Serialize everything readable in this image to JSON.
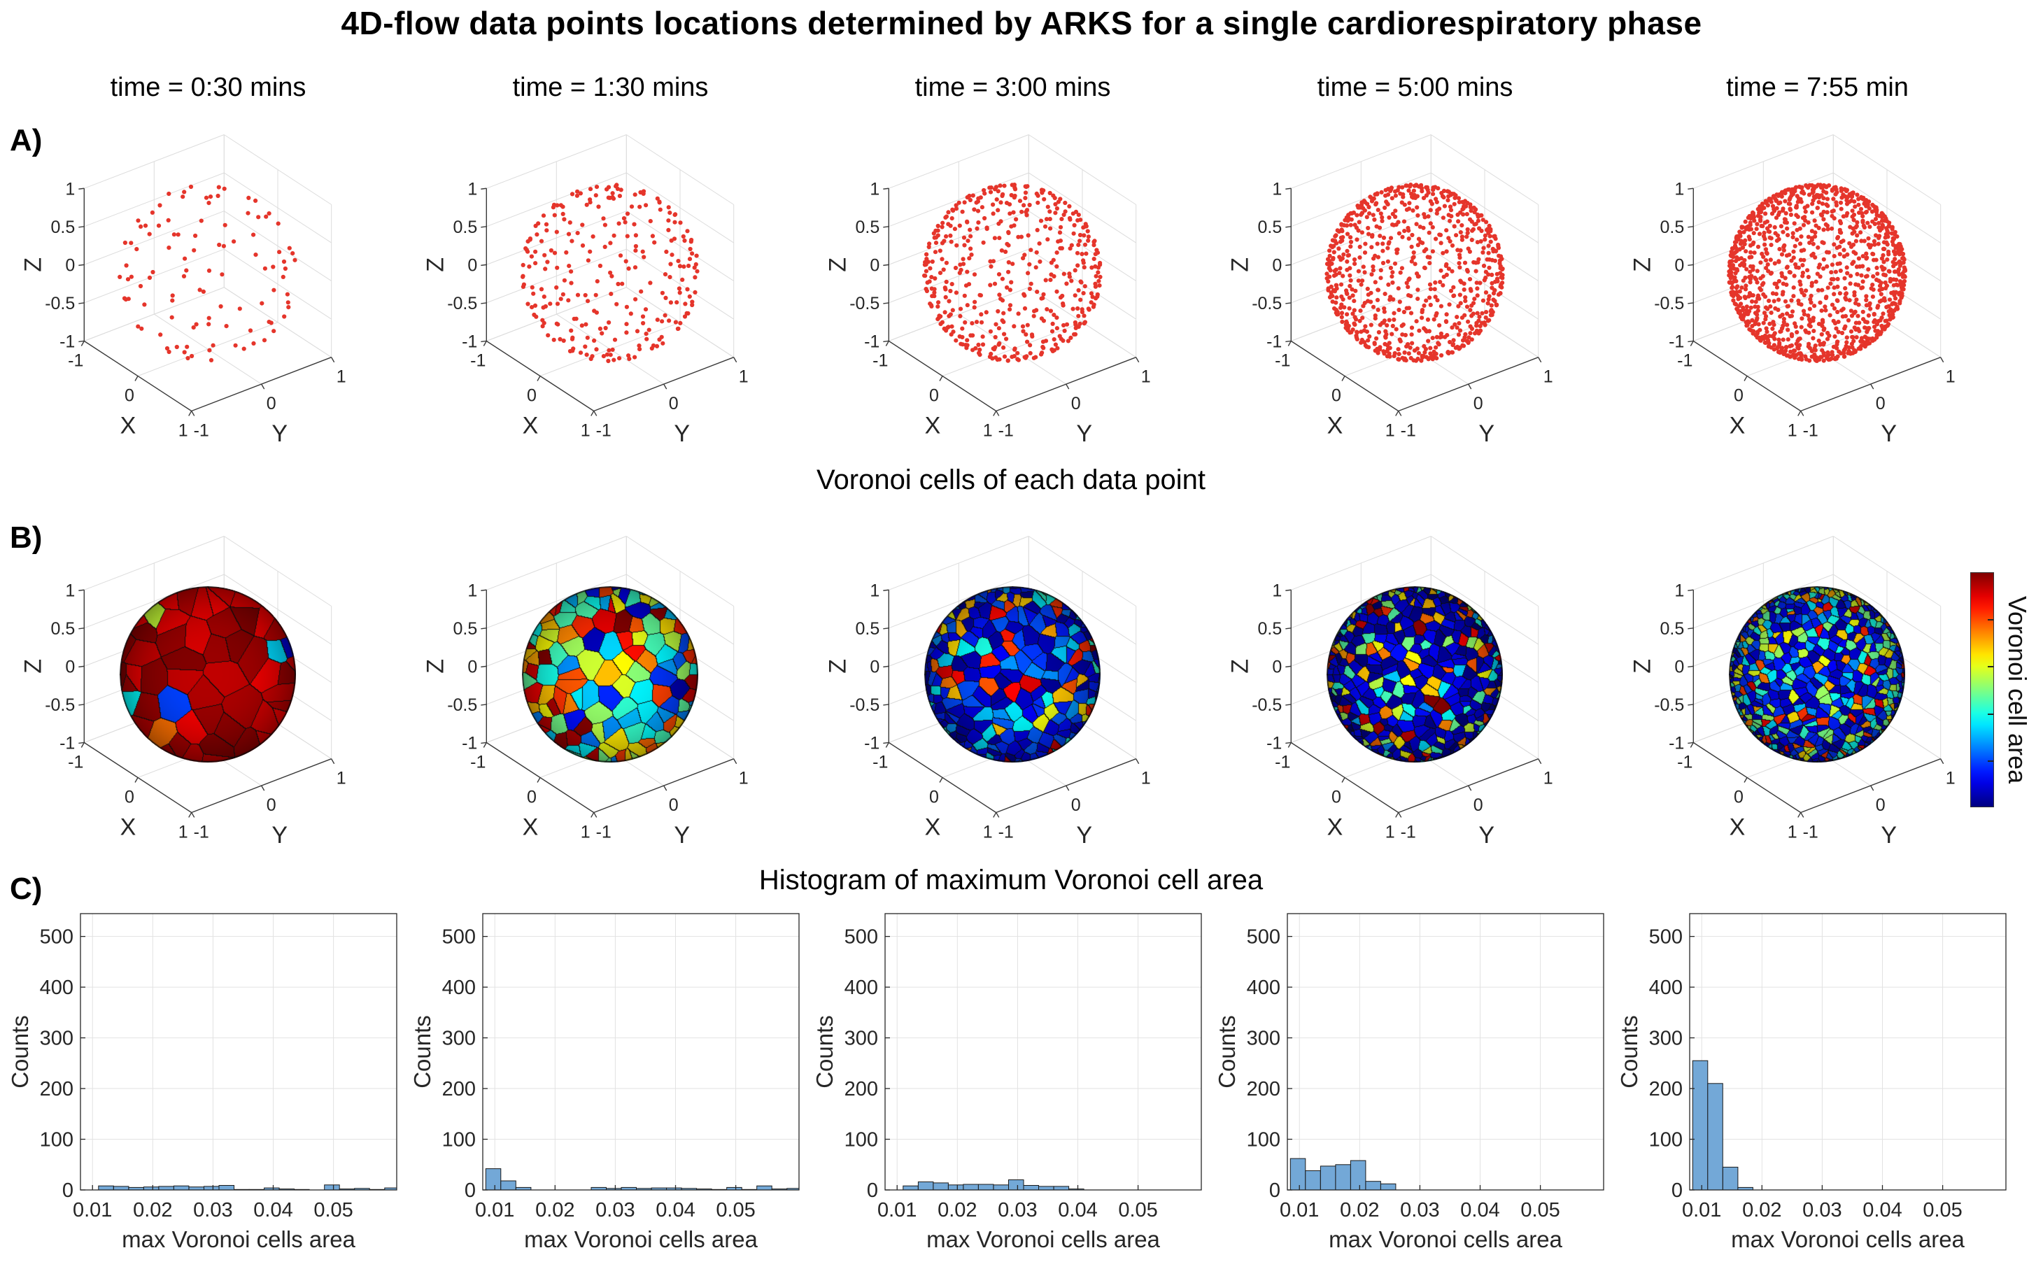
{
  "figure": {
    "title": "4D-flow data points locations determined by ARKS for a single cardiorespiratory phase",
    "row_labels": {
      "a": "A)",
      "b": "B)",
      "c": "C)"
    },
    "row_b_subtitle": "Voronoi cells of each data point",
    "row_c_subtitle": "Histogram of maximum Voronoi cell area",
    "time_labels": [
      "time = 0:30 mins",
      "time = 1:30 mins",
      "time = 3:00 mins",
      "time = 5:00 mins",
      "time = 7:55 min"
    ]
  },
  "axes3d": {
    "xlabel": "X",
    "ylabel": "Y",
    "zlabel": "Z",
    "xticks": [
      -1,
      0,
      1
    ],
    "yticks": [
      -1,
      0,
      1
    ],
    "zticks": [
      1,
      0.5,
      0,
      -0.5,
      -1
    ],
    "xlim": [
      -1,
      1
    ],
    "ylim": [
      -1,
      1
    ],
    "zlim": [
      -1,
      1
    ],
    "grid": true
  },
  "colorbar": {
    "label": "Voronoi cell area",
    "colormap": "jet"
  },
  "chart_data": {
    "row_a": {
      "type": "scatter",
      "description": "3D scatter of 4D-flow sampling locations on the unit sphere at increasing scan times",
      "marker_color": "#e5352b",
      "columns": [
        {
          "time": "0:30",
          "n_points": 104
        },
        {
          "time": "1:30",
          "n_points": 260
        },
        {
          "time": "3:00",
          "n_points": 470
        },
        {
          "time": "5:00",
          "n_points": 780
        },
        {
          "time": "7:55",
          "n_points": 1160
        }
      ]
    },
    "row_b": {
      "type": "heatmap",
      "description": "Spherical Voronoi tessellation of the data points, cells colored by Voronoi cell area (jet colormap, dark red = large, dark blue = small)",
      "colormap": "jet",
      "columns": [
        {
          "time": "0:30",
          "n_cells": 104,
          "dominant": "large dark-red cells with a few cyan/yellow/blue cells",
          "area_value_mix": [
            [
              0.88,
              1.0,
              0.9
            ],
            [
              0.3,
              0.8,
              0.06
            ],
            [
              0.0,
              0.25,
              0.04
            ]
          ]
        },
        {
          "time": "1:30",
          "n_cells": 260,
          "dominant": "mixed cyan/green/yellow cells with scattered dark-red and blue",
          "area_value_mix": [
            [
              0.25,
              0.75,
              0.62
            ],
            [
              0.75,
              1.0,
              0.2
            ],
            [
              0.05,
              0.25,
              0.18
            ]
          ]
        },
        {
          "time": "3:00",
          "n_cells": 470,
          "dominant": "mostly blue cells with scattered dark-red/orange patches",
          "area_value_mix": [
            [
              0.02,
              0.22,
              0.66
            ],
            [
              0.22,
              0.45,
              0.14
            ],
            [
              0.6,
              1.0,
              0.2
            ]
          ]
        },
        {
          "time": "5:00",
          "n_cells": 780,
          "dominant": "dark-blue cells with many scattered red/orange/yellow cells",
          "area_value_mix": [
            [
              0.0,
              0.14,
              0.62
            ],
            [
              0.55,
              1.0,
              0.24
            ],
            [
              0.25,
              0.55,
              0.14
            ]
          ]
        },
        {
          "time": "7:55",
          "n_cells": 1160,
          "dominant": "dark-blue background with many small green/cyan/yellow cells",
          "area_value_mix": [
            [
              0.03,
              0.2,
              0.5
            ],
            [
              0.25,
              0.62,
              0.38
            ],
            [
              0.62,
              0.95,
              0.12
            ]
          ]
        }
      ]
    },
    "row_c": {
      "type": "bar",
      "xlabel": "max Voronoi cells area",
      "ylabel": "Counts",
      "bar_color": "#73a8d7",
      "bin_width": 0.0025,
      "xlim": [
        0.008,
        0.0605
      ],
      "ylim": [
        0,
        545
      ],
      "xticks": [
        0.01,
        0.02,
        0.03,
        0.04,
        0.05
      ],
      "yticks": [
        0,
        100,
        200,
        300,
        400,
        500
      ],
      "columns": [
        {
          "time": "0:30",
          "bin_start": 0.011,
          "counts": [
            8,
            7,
            5,
            6,
            7,
            8,
            6,
            7,
            9,
            1,
            1,
            4,
            2,
            1,
            0,
            10,
            2,
            3,
            1,
            4
          ]
        },
        {
          "time": "1:30",
          "bin_start": 0.0085,
          "counts": [
            42,
            18,
            5,
            0,
            0,
            0,
            0,
            5,
            3,
            5,
            3,
            4,
            4,
            3,
            2,
            1,
            5,
            1,
            8,
            2,
            3
          ]
        },
        {
          "time": "3:00",
          "bin_start": 0.011,
          "counts": [
            8,
            16,
            14,
            10,
            11,
            11,
            10,
            20,
            9,
            7,
            7,
            2
          ]
        },
        {
          "time": "5:00",
          "bin_start": 0.0085,
          "counts": [
            62,
            38,
            47,
            50,
            58,
            17,
            12
          ]
        },
        {
          "time": "7:55",
          "bin_start": 0.0085,
          "counts": [
            255,
            210,
            45,
            5
          ]
        }
      ]
    }
  }
}
